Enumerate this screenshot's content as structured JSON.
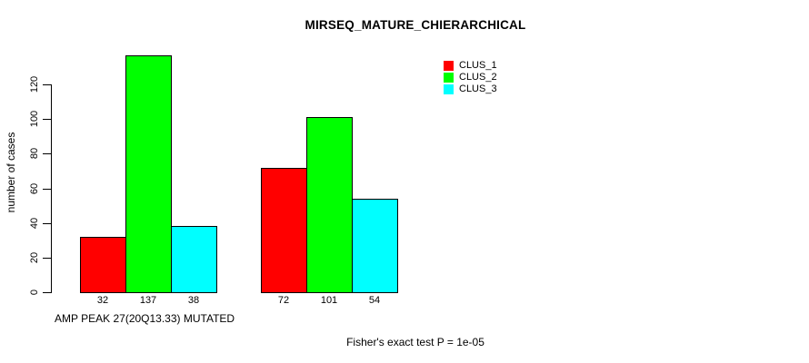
{
  "chart_data": {
    "type": "bar",
    "title": "MIRSEQ_MATURE_CHIERARCHICAL",
    "ylabel": "number of cases",
    "xlabel": "AMP PEAK 27(20Q13.33) MUTATED",
    "footnote": "Fisher's exact test P = 1e-05",
    "n_groups": 2,
    "series": [
      {
        "name": "CLUS_1",
        "color": "#ff0000",
        "values": [
          32,
          72
        ]
      },
      {
        "name": "CLUS_2",
        "color": "#00ff00",
        "values": [
          137,
          101
        ]
      },
      {
        "name": "CLUS_3",
        "color": "#00ffff",
        "values": [
          38,
          54
        ]
      }
    ],
    "yticks": [
      0,
      20,
      40,
      60,
      80,
      100,
      120
    ],
    "ylim": [
      0,
      137
    ],
    "bar_value_labels": [
      [
        32,
        137,
        38
      ],
      [
        72,
        101,
        54
      ]
    ],
    "legend_position": "top-right",
    "grid": false,
    "background_color": "#ffffff",
    "axis_color": "#000000"
  }
}
